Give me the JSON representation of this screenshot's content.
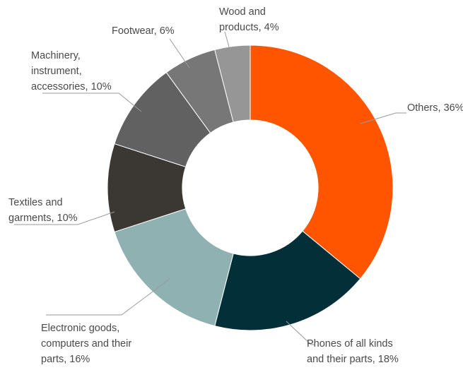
{
  "chart_data": {
    "type": "pie",
    "variant": "donut",
    "title": "",
    "unit": "%",
    "slices": [
      {
        "name": "Others",
        "label_lines": [
          "Others, 36%"
        ],
        "value": 36,
        "color": "#FF5500"
      },
      {
        "name": "Phones of all kinds and their parts",
        "label_lines": [
          "Phones of all kinds",
          "and their parts, 18%"
        ],
        "value": 18,
        "color": "#022F38"
      },
      {
        "name": "Electronic goods, computers and their parts",
        "label_lines": [
          "Electronic goods,",
          "computers and their",
          "parts, 16%"
        ],
        "value": 16,
        "color": "#8FB1B2"
      },
      {
        "name": "Textiles and garments",
        "label_lines": [
          "Textiles and",
          "garments, 10%"
        ],
        "value": 10,
        "color": "#3B3733"
      },
      {
        "name": "Machinery, instrument, accessories",
        "label_lines": [
          "Machinery,",
          "instrument,",
          "accessories, 10%"
        ],
        "value": 10,
        "color": "#616161"
      },
      {
        "name": "Footwear",
        "label_lines": [
          "Footwear, 6%"
        ],
        "value": 6,
        "color": "#777777"
      },
      {
        "name": "Wood and products",
        "label_lines": [
          "Wood and",
          "products, 4%"
        ],
        "value": 4,
        "color": "#969696"
      }
    ],
    "legend": "none",
    "label_placement": "outside-with-leaders"
  }
}
